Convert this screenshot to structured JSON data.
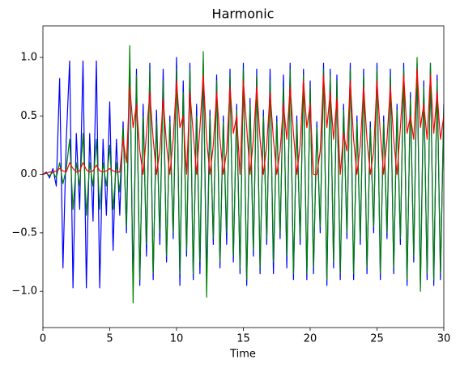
{
  "chart_data": {
    "type": "line",
    "title": "Harmonic",
    "x_label": "Time",
    "xlim": [
      0,
      30
    ],
    "xticks": [
      0,
      5,
      10,
      15,
      20,
      25,
      30
    ],
    "ylim": [
      -1.31,
      1.27
    ],
    "yticks": [
      {
        "value": -1,
        "label": "−1.0"
      },
      {
        "value": -0.5,
        "label": "−0.5"
      },
      {
        "value": 0,
        "label": "0.0"
      },
      {
        "value": 0.5,
        "label": "0.5"
      },
      {
        "value": 1,
        "label": "1.0"
      }
    ],
    "x": [
      0,
      0.25,
      0.5,
      0.75,
      1,
      1.25,
      1.5,
      1.75,
      2,
      2.25,
      2.5,
      2.75,
      3,
      3.25,
      3.5,
      3.75,
      4,
      4.25,
      4.5,
      4.75,
      5,
      5.25,
      5.5,
      5.75,
      6,
      6.25,
      6.5,
      6.75,
      7,
      7.25,
      7.5,
      7.75,
      8,
      8.25,
      8.5,
      8.75,
      9,
      9.25,
      9.5,
      9.75,
      10,
      10.25,
      10.5,
      10.75,
      11,
      11.25,
      11.5,
      11.75,
      12,
      12.25,
      12.5,
      12.75,
      13,
      13.25,
      13.5,
      13.75,
      14,
      14.25,
      14.5,
      14.75,
      15,
      15.25,
      15.5,
      15.75,
      16,
      16.25,
      16.5,
      16.75,
      17,
      17.25,
      17.5,
      17.75,
      18,
      18.25,
      18.5,
      18.75,
      19,
      19.25,
      19.5,
      19.75,
      20,
      20.25,
      20.5,
      20.75,
      21,
      21.25,
      21.5,
      21.75,
      22,
      22.25,
      22.5,
      22.75,
      23,
      23.25,
      23.5,
      23.75,
      24,
      24.25,
      24.5,
      24.75,
      25,
      25.25,
      25.5,
      25.75,
      26,
      26.25,
      26.5,
      26.75,
      27,
      27.25,
      27.5,
      27.75,
      28,
      28.25,
      28.5,
      28.75,
      29,
      29.25,
      29.5,
      29.75,
      30
    ],
    "series": [
      {
        "color": "#0000ff",
        "values": [
          0,
          0.02,
          -0.03,
          0.05,
          -0.1,
          0.82,
          -0.8,
          0.3,
          0.97,
          -0.97,
          0.35,
          -0.3,
          0.97,
          -0.97,
          0.35,
          -0.4,
          0.97,
          -0.97,
          0.3,
          -0.35,
          0.62,
          -0.65,
          0.3,
          -0.35,
          0.45,
          -0.5,
          0.95,
          -0.97,
          0.9,
          -0.95,
          0.6,
          -0.7,
          0.95,
          -0.9,
          0.55,
          -0.6,
          0.9,
          -0.75,
          0.5,
          -0.55,
          1.0,
          -0.95,
          0.8,
          -0.7,
          0.95,
          -0.9,
          0.6,
          -0.85,
          0.95,
          -0.9,
          0.55,
          -0.6,
          0.85,
          -0.8,
          0.5,
          -0.6,
          0.9,
          -0.75,
          0.6,
          -0.85,
          0.95,
          -0.95,
          0.65,
          -0.7,
          0.9,
          -0.85,
          0.55,
          -0.6,
          0.9,
          -0.85,
          0.5,
          -0.55,
          0.85,
          -0.8,
          0.95,
          -0.9,
          0.5,
          -0.6,
          0.9,
          -0.9,
          0.8,
          -0.85,
          0.45,
          -0.5,
          0.95,
          -0.95,
          0.9,
          -0.8,
          0.85,
          -0.9,
          0.6,
          -0.55,
          0.95,
          -0.9,
          0.5,
          -0.6,
          0.9,
          -0.85,
          0.45,
          -0.5,
          0.95,
          -0.9,
          0.5,
          -0.55,
          0.9,
          -0.85,
          0.6,
          -0.6,
          0.95,
          -0.95,
          0.7,
          -0.75,
          0.95,
          -0.95,
          0.8,
          -0.9,
          0.95,
          -0.95,
          0.85,
          -0.9,
          0.6
        ]
      },
      {
        "color": "#008000",
        "values": [
          0,
          0.01,
          -0.01,
          0.02,
          -0.03,
          0.1,
          -0.08,
          0.05,
          0.3,
          -0.3,
          0.1,
          -0.1,
          0.35,
          -0.35,
          0.1,
          -0.1,
          0.3,
          -0.3,
          0.1,
          -0.1,
          0.25,
          -0.3,
          0.1,
          -0.15,
          0.4,
          -0.45,
          1.1,
          -1.1,
          0.85,
          -0.9,
          0.5,
          -0.6,
          0.9,
          -0.85,
          0.45,
          -0.5,
          0.8,
          -0.7,
          0.45,
          -0.5,
          0.9,
          -0.85,
          0.7,
          -0.65,
          0.9,
          -0.85,
          0.5,
          -0.75,
          1.05,
          -1.05,
          0.5,
          -0.55,
          0.8,
          -0.75,
          0.45,
          -0.5,
          0.85,
          -0.7,
          0.55,
          -0.8,
          0.9,
          -0.9,
          0.6,
          -0.65,
          0.85,
          -0.8,
          0.5,
          -0.55,
          0.8,
          -0.75,
          0.45,
          -0.5,
          0.75,
          -0.7,
          0.9,
          -0.85,
          0.45,
          -0.55,
          0.85,
          -0.85,
          0.75,
          -0.8,
          0.4,
          -0.45,
          0.9,
          -0.9,
          0.85,
          -0.75,
          0.8,
          -0.85,
          0.55,
          -0.5,
          0.9,
          -0.85,
          0.45,
          -0.55,
          0.85,
          -0.8,
          0.4,
          -0.45,
          0.9,
          -0.85,
          0.45,
          -0.5,
          0.85,
          -0.8,
          0.55,
          -0.55,
          0.9,
          -0.9,
          0.65,
          -0.7,
          1.0,
          -1.0,
          0.75,
          -0.85,
          0.95,
          -0.9,
          0.8,
          -0.85,
          0.55
        ]
      },
      {
        "color": "#ff0000",
        "values": [
          0,
          0.01,
          0.02,
          0.02,
          0.03,
          0.05,
          0.03,
          0.02,
          0.1,
          0.05,
          0.02,
          0.03,
          0.1,
          0.04,
          0.02,
          0.03,
          0.08,
          0.03,
          0.02,
          0.03,
          0.05,
          0.03,
          0.02,
          0.02,
          0.3,
          0.1,
          0.75,
          0.4,
          0.6,
          0.2,
          0.0,
          0.35,
          0.7,
          0.3,
          0.0,
          0.2,
          0.65,
          0.25,
          0.0,
          0.3,
          0.8,
          0.4,
          0.5,
          0.0,
          0.7,
          0.35,
          0.0,
          0.4,
          0.85,
          0.3,
          0.0,
          0.25,
          0.7,
          0.3,
          0.0,
          0.2,
          0.75,
          0.35,
          0.5,
          0.0,
          0.8,
          0.4,
          0.0,
          0.3,
          0.75,
          0.3,
          0.0,
          0.25,
          0.7,
          0.3,
          0.0,
          0.2,
          0.6,
          0.3,
          0.75,
          0.35,
          0.0,
          0.25,
          0.8,
          0.4,
          0.6,
          0.0,
          0.0,
          0.2,
          0.85,
          0.4,
          0.7,
          0.3,
          0.65,
          0.0,
          0.35,
          0.2,
          0.8,
          0.3,
          0.0,
          0.25,
          0.75,
          0.3,
          0.0,
          0.2,
          0.8,
          0.35,
          0.0,
          0.3,
          0.75,
          0.3,
          0.0,
          0.4,
          0.85,
          0.35,
          0.5,
          0.3,
          0.9,
          0.4,
          0.6,
          0.3,
          0.85,
          0.35,
          0.7,
          0.3,
          0.5
        ]
      }
    ]
  }
}
